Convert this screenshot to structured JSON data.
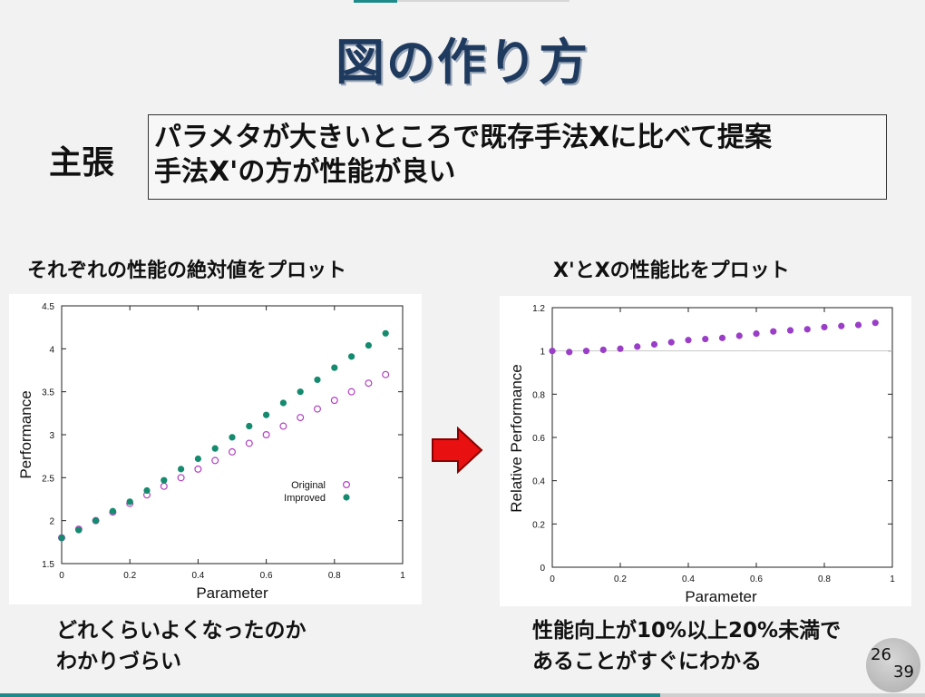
{
  "slide": {
    "title": "図の作り方",
    "claim_label": "主張",
    "claim_text_line1": "パラメタが大きいところで既存手法Xに比べて提案",
    "claim_text_line2": "手法X'の方が性能が良い",
    "left_caption": "それぞれの性能の絶対値をプロット",
    "right_caption": "X'とXの性能比をプロット",
    "left_note_line1": "どれくらいよくなったのか",
    "left_note_line2": "わかりづらい",
    "right_note_line1": "性能向上が10%以上20%未満で",
    "right_note_line2": "あることがすぐにわかる",
    "page_current": "26",
    "page_total": "39"
  },
  "colors": {
    "title": "#1f3a5f",
    "original": "#b040c0",
    "improved": "#148a6e",
    "relative": "#9a3ec8",
    "arrow": "#e81010",
    "accent": "#1f8a8a"
  },
  "chart_data": [
    {
      "type": "scatter",
      "title": "",
      "xlabel": "Parameter",
      "ylabel": "Performance",
      "xlim": [
        0,
        1
      ],
      "ylim": [
        1.5,
        4.5
      ],
      "xticks": [
        "0",
        "0.2",
        "0.4",
        "0.6",
        "0.8",
        "1"
      ],
      "yticks": [
        "1.5",
        "2",
        "2.5",
        "3",
        "3.5",
        "4",
        "4.5"
      ],
      "legend_position": "right-middle",
      "grid": false,
      "series": [
        {
          "name": "Original",
          "marker": "open-circle",
          "x": [
            0,
            0.05,
            0.1,
            0.15,
            0.2,
            0.25,
            0.3,
            0.35,
            0.4,
            0.45,
            0.5,
            0.55,
            0.6,
            0.65,
            0.7,
            0.75,
            0.8,
            0.85,
            0.9,
            0.95
          ],
          "y": [
            1.8,
            1.9,
            2.0,
            2.1,
            2.2,
            2.3,
            2.4,
            2.5,
            2.6,
            2.7,
            2.8,
            2.9,
            3.0,
            3.1,
            3.2,
            3.3,
            3.4,
            3.5,
            3.6,
            3.7
          ]
        },
        {
          "name": "Improved",
          "marker": "filled-circle",
          "x": [
            0,
            0.05,
            0.1,
            0.15,
            0.2,
            0.25,
            0.3,
            0.35,
            0.4,
            0.45,
            0.5,
            0.55,
            0.6,
            0.65,
            0.7,
            0.75,
            0.8,
            0.85,
            0.9,
            0.95
          ],
          "y": [
            1.8,
            1.89,
            2.0,
            2.11,
            2.22,
            2.35,
            2.47,
            2.6,
            2.72,
            2.84,
            2.97,
            3.1,
            3.23,
            3.37,
            3.5,
            3.64,
            3.78,
            3.91,
            4.04,
            4.18
          ]
        }
      ]
    },
    {
      "type": "scatter",
      "title": "",
      "xlabel": "Parameter",
      "ylabel": "Relative Performance",
      "xlim": [
        0,
        1
      ],
      "ylim": [
        0,
        1.2
      ],
      "xticks": [
        "0",
        "0.2",
        "0.4",
        "0.6",
        "0.8",
        "1"
      ],
      "yticks": [
        "0",
        "0.2",
        "0.4",
        "0.6",
        "0.8",
        "1",
        "1.2"
      ],
      "reference_line": 1,
      "grid": false,
      "series": [
        {
          "marker": "filled-circle",
          "x": [
            0,
            0.05,
            0.1,
            0.15,
            0.2,
            0.25,
            0.3,
            0.35,
            0.4,
            0.45,
            0.5,
            0.55,
            0.6,
            0.65,
            0.7,
            0.75,
            0.8,
            0.85,
            0.9,
            0.95
          ],
          "y": [
            1.0,
            0.995,
            1.0,
            1.005,
            1.01,
            1.02,
            1.03,
            1.04,
            1.05,
            1.055,
            1.06,
            1.07,
            1.08,
            1.09,
            1.095,
            1.1,
            1.11,
            1.115,
            1.12,
            1.13
          ]
        }
      ]
    }
  ]
}
